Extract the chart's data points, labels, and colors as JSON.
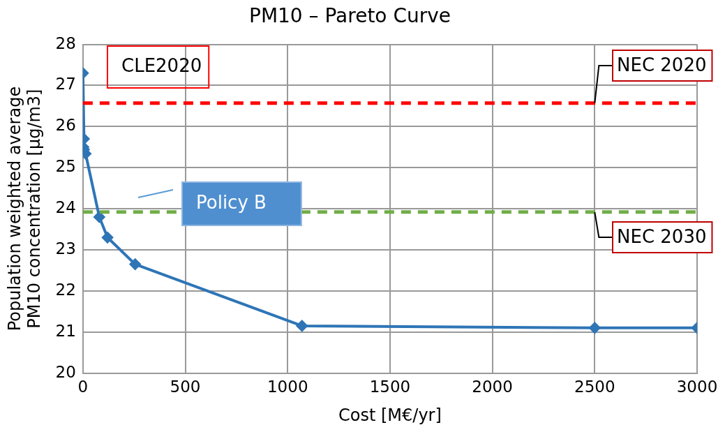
{
  "chart_data": {
    "type": "line",
    "title": "PM10 – Pareto Curve",
    "xlabel": "Cost [M€/yr]",
    "ylabel": "Population weighted average PM10 concentration [µg/m3]",
    "x": [
      0,
      5,
      2,
      5,
      13,
      80,
      120,
      255,
      1070,
      2500,
      3000
    ],
    "series": [
      {
        "color": "#2e75b6",
        "values": [
          27.3,
          25.7,
          25.5,
          25.44,
          25.34,
          23.8,
          23.3,
          22.65,
          21.15,
          21.1,
          21.1
        ]
      }
    ],
    "xlim": [
      0,
      3000
    ],
    "xticks": [
      0,
      500,
      1000,
      1500,
      2000,
      2500,
      3000
    ],
    "ylim": [
      20,
      28
    ],
    "yticks": [
      20,
      21,
      22,
      23,
      24,
      25,
      26,
      27,
      28
    ],
    "grid": true,
    "legend": false,
    "marker": "diamond",
    "line_style": "solid",
    "ref_lines": [
      {
        "axis": "y",
        "value": 26.57,
        "label": "NEC 2020",
        "color": "#ff0000",
        "line_style": "dashed"
      },
      {
        "axis": "y",
        "value": 23.92,
        "label": "NEC 2030",
        "color": "#70ad47",
        "line_style": "dashed"
      }
    ],
    "annotations": [
      "CLE2020",
      "Policy B"
    ]
  }
}
